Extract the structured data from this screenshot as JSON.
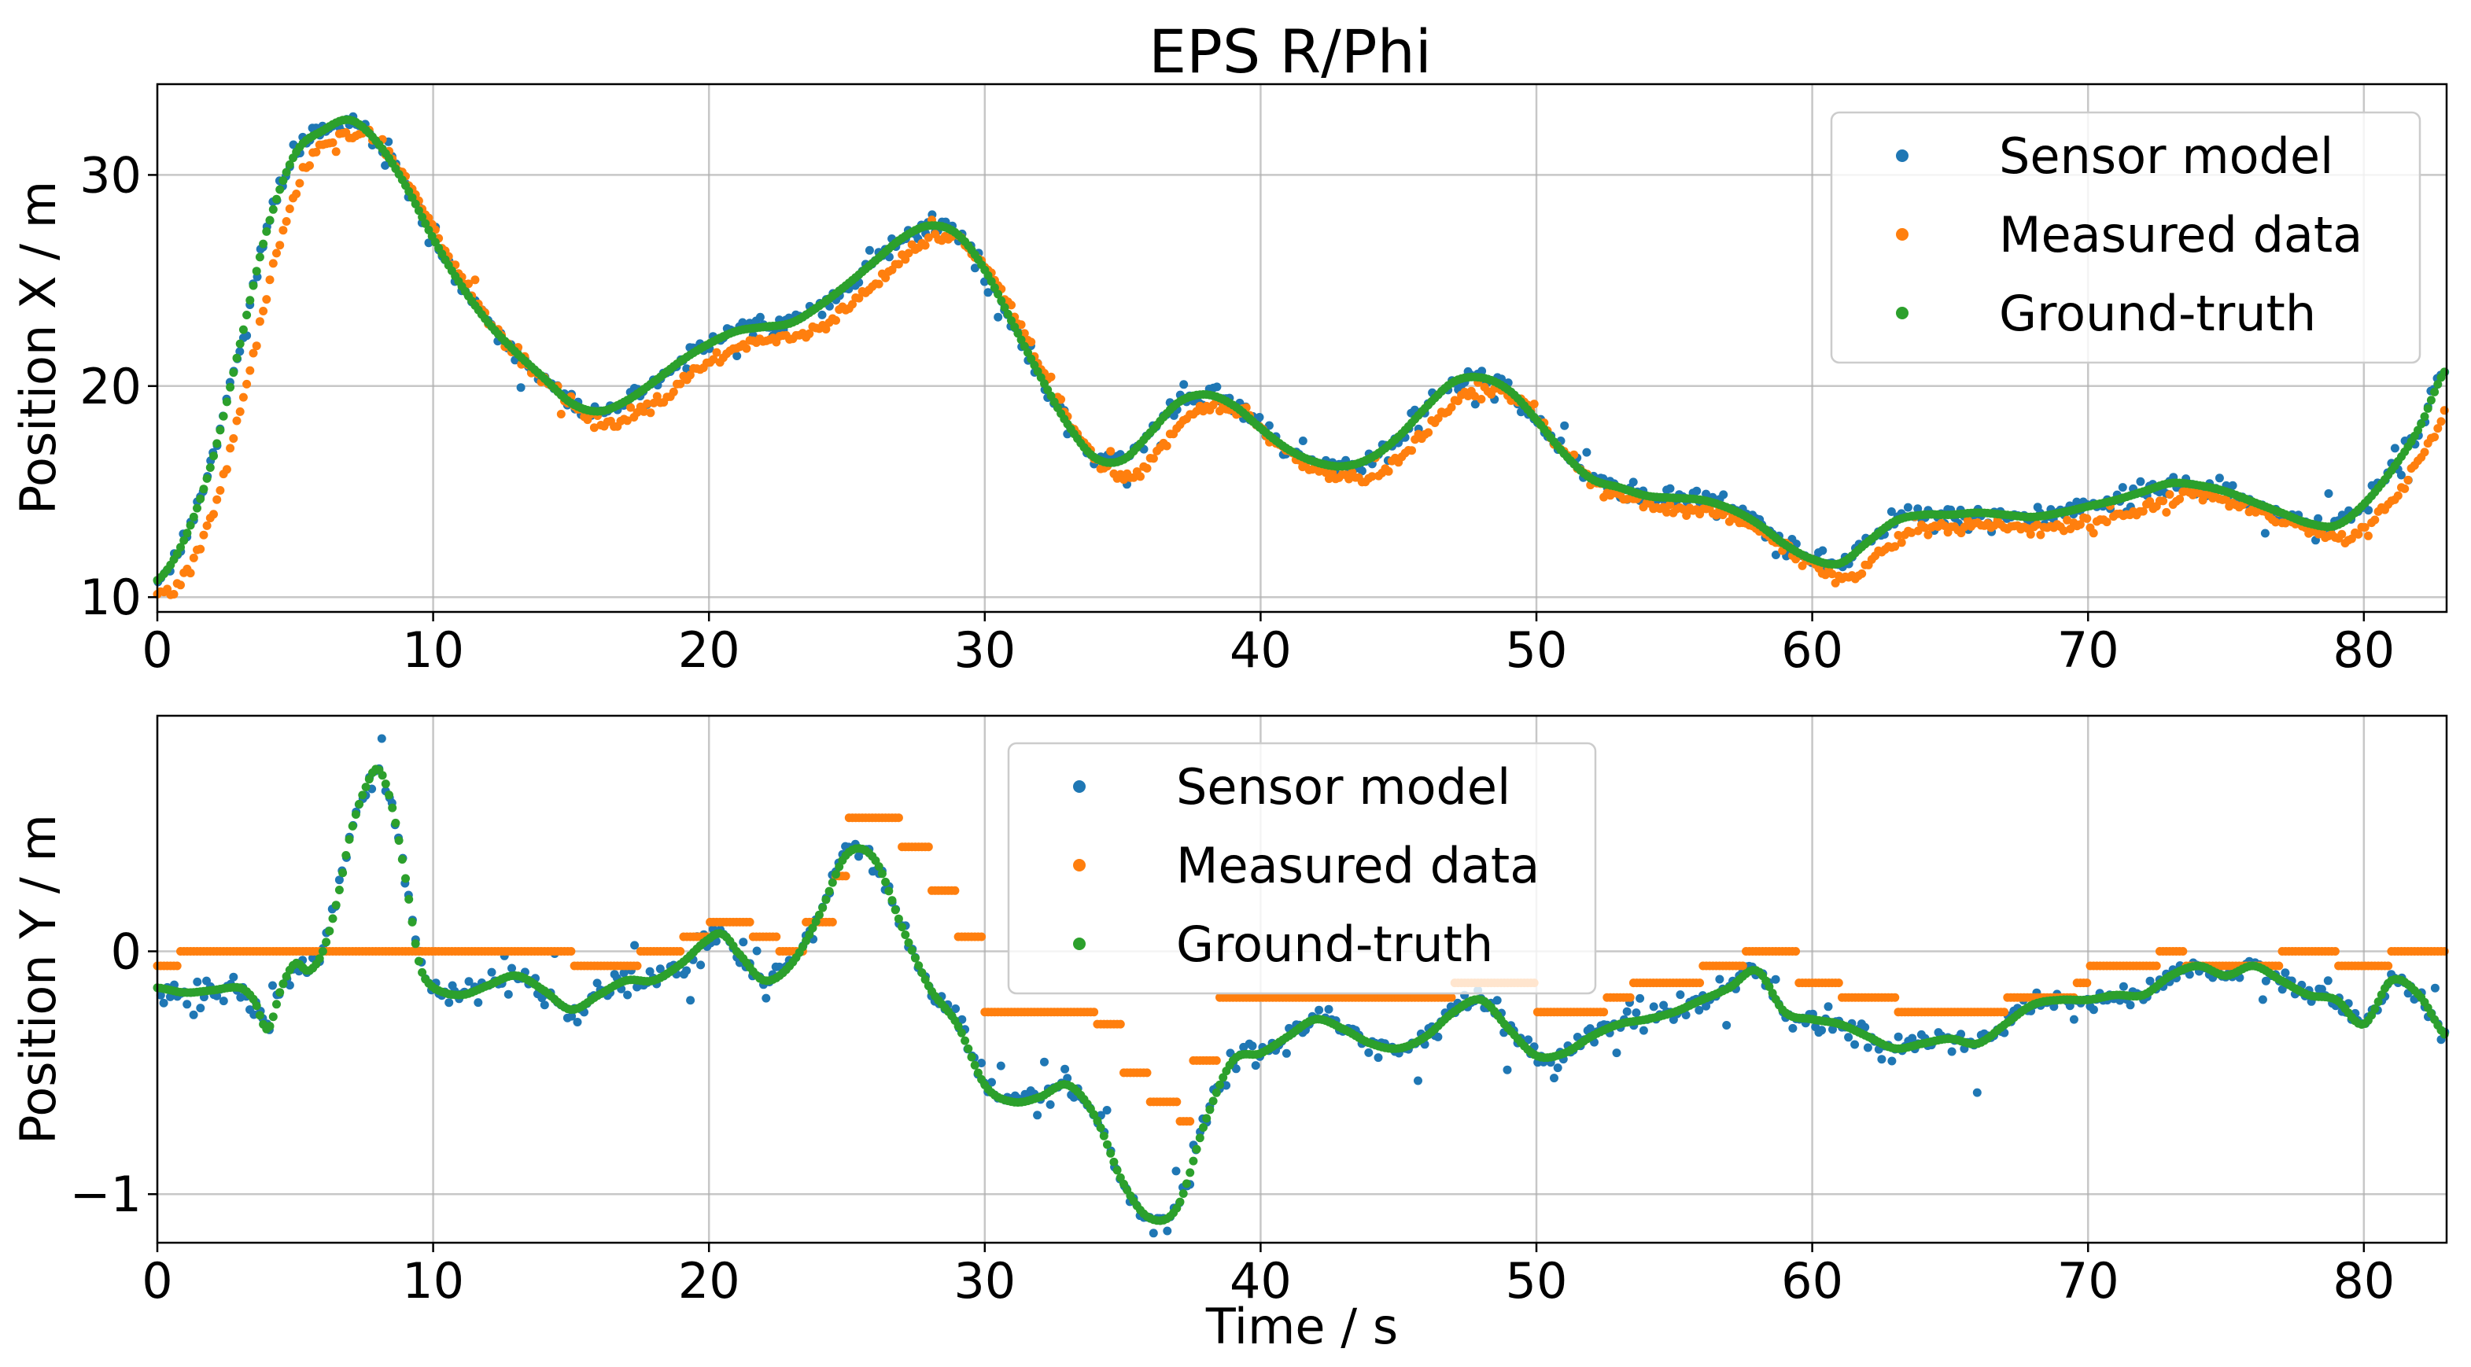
{
  "figure": {
    "title": "EPS R/Phi"
  },
  "chart_data": [
    {
      "type": "scatter",
      "title": "EPS R/Phi",
      "xlabel": "",
      "ylabel": "Position X / m",
      "xlim": [
        0,
        83
      ],
      "ylim": [
        9.3,
        34.3
      ],
      "xticks": [
        0,
        10,
        20,
        30,
        40,
        50,
        60,
        70,
        80
      ],
      "xtick_labels": [
        "0",
        "10",
        "20",
        "30",
        "40",
        "50",
        "60",
        "70",
        "80"
      ],
      "yticks": [
        10,
        20,
        30
      ],
      "ytick_labels": [
        "10",
        "20",
        "30"
      ],
      "grid": true,
      "legend_position": "top-right",
      "sample_step": 0.12,
      "truth_anchors": {
        "x": [
          0,
          1,
          2,
          3,
          4,
          5,
          6,
          7,
          8,
          9,
          10,
          11,
          12,
          13,
          14,
          15,
          16,
          17,
          18,
          19,
          20,
          21,
          22,
          23,
          24,
          25,
          26,
          27,
          28,
          29,
          30,
          31,
          32,
          33,
          34,
          35,
          36,
          37,
          38,
          39,
          40,
          41,
          42,
          43,
          44,
          45,
          46,
          47,
          48,
          49,
          50,
          51,
          52,
          53,
          54,
          55,
          56,
          57,
          58,
          59,
          60,
          61,
          62,
          63,
          64,
          65,
          66,
          67,
          68,
          69,
          70,
          71,
          72,
          73,
          74,
          75,
          76,
          77,
          78,
          79,
          80,
          81,
          82,
          83
        ],
        "y": [
          10.8,
          12.8,
          16.5,
          22.0,
          27.5,
          31.0,
          32.1,
          32.6,
          31.5,
          29.5,
          27.0,
          24.8,
          23.0,
          21.6,
          20.4,
          19.2,
          18.8,
          19.3,
          20.2,
          21.2,
          22.0,
          22.6,
          22.8,
          23.0,
          23.8,
          24.8,
          25.9,
          27.0,
          27.6,
          27.2,
          25.5,
          23.0,
          20.5,
          18.2,
          16.6,
          16.5,
          17.8,
          19.2,
          19.6,
          19.1,
          18.0,
          17.0,
          16.4,
          16.2,
          16.6,
          17.6,
          19.0,
          20.2,
          20.4,
          19.8,
          18.4,
          16.8,
          15.6,
          15.2,
          14.8,
          14.7,
          14.6,
          14.2,
          13.5,
          12.5,
          11.8,
          11.6,
          12.6,
          13.6,
          13.9,
          13.9,
          14.0,
          13.9,
          13.8,
          14.0,
          14.3,
          14.6,
          15.0,
          15.4,
          15.3,
          15.0,
          14.5,
          14.0,
          13.5,
          13.4,
          14.4,
          16.0,
          18.0,
          20.8
        ]
      },
      "measured_offset": -0.6,
      "measured_lag": 0.45,
      "series": [
        {
          "name": "Sensor model",
          "color": "#1f77b4",
          "noise": 0.25,
          "outlier_rate": 0.04,
          "outlier_amp": 1.4
        },
        {
          "name": "Measured data",
          "color": "#ff7f0e",
          "noise": 0.15,
          "outlier_rate": 0.03,
          "outlier_amp": 1.0
        },
        {
          "name": "Ground-truth",
          "color": "#2ca02c",
          "noise": 0.0,
          "outlier_rate": 0.0,
          "outlier_amp": 0.0
        }
      ]
    },
    {
      "type": "scatter",
      "title": "",
      "xlabel": "Time / s",
      "ylabel": "Position Y / m",
      "xlim": [
        0,
        83
      ],
      "ylim": [
        -1.2,
        0.97
      ],
      "xticks": [
        0,
        10,
        20,
        30,
        40,
        50,
        60,
        70,
        80
      ],
      "xtick_labels": [
        "0",
        "10",
        "20",
        "30",
        "40",
        "50",
        "60",
        "70",
        "80"
      ],
      "yticks": [
        -1,
        0
      ],
      "ytick_labels": [
        "−1",
        "0"
      ],
      "grid": true,
      "legend_position": "top-center",
      "sample_step": 0.12,
      "truth_anchors": {
        "x": [
          0,
          1,
          2,
          3,
          3.5,
          4,
          4.5,
          5,
          5.5,
          6,
          6.5,
          7,
          7.5,
          8,
          8.5,
          9,
          9.5,
          10,
          11,
          12,
          13,
          14,
          15,
          16,
          17,
          18,
          19,
          20,
          20.5,
          21,
          22,
          23,
          24,
          25,
          26,
          27,
          28,
          29,
          30,
          31,
          32,
          33,
          34,
          35,
          36,
          37,
          38,
          39,
          40,
          41,
          42,
          43,
          44,
          45,
          46,
          47,
          48,
          49,
          50,
          51,
          52,
          53,
          54,
          55,
          56,
          57,
          58,
          59,
          60,
          61,
          62,
          63,
          64,
          65,
          66,
          67,
          68,
          69,
          70,
          71,
          72,
          73,
          74,
          75,
          76,
          77,
          78,
          79,
          80,
          81,
          82,
          83
        ],
        "y": [
          -0.15,
          -0.17,
          -0.16,
          -0.15,
          -0.2,
          -0.32,
          -0.15,
          -0.05,
          -0.08,
          0.0,
          0.2,
          0.48,
          0.66,
          0.75,
          0.6,
          0.3,
          -0.05,
          -0.15,
          -0.18,
          -0.14,
          -0.1,
          -0.16,
          -0.24,
          -0.18,
          -0.12,
          -0.12,
          -0.05,
          0.05,
          0.07,
          0.0,
          -0.12,
          -0.05,
          0.15,
          0.4,
          0.38,
          0.1,
          -0.15,
          -0.3,
          -0.55,
          -0.62,
          -0.6,
          -0.55,
          -0.68,
          -0.95,
          -1.1,
          -1.05,
          -0.7,
          -0.45,
          -0.42,
          -0.35,
          -0.28,
          -0.32,
          -0.38,
          -0.4,
          -0.35,
          -0.25,
          -0.2,
          -0.32,
          -0.43,
          -0.42,
          -0.35,
          -0.3,
          -0.28,
          -0.25,
          -0.2,
          -0.15,
          -0.08,
          -0.25,
          -0.28,
          -0.3,
          -0.35,
          -0.4,
          -0.38,
          -0.36,
          -0.38,
          -0.3,
          -0.22,
          -0.2,
          -0.2,
          -0.18,
          -0.18,
          -0.1,
          -0.06,
          -0.1,
          -0.06,
          -0.12,
          -0.18,
          -0.2,
          -0.3,
          -0.12,
          -0.18,
          -0.35
        ]
      },
      "measured_plateaus": {
        "x_starts": [
          0,
          0.8,
          10,
          15,
          17.5,
          19,
          20,
          21.5,
          22.5,
          23.5,
          24.5,
          25,
          26,
          27,
          28,
          29,
          30,
          33,
          34,
          35,
          36,
          37,
          37.5,
          38.5,
          40,
          45,
          47,
          50,
          52.5,
          53.5,
          56,
          57.5,
          58.5,
          59.5,
          61,
          63,
          66,
          67,
          68,
          69.5,
          70,
          71.5,
          72.5,
          73.5,
          75,
          77,
          77.5,
          79,
          81,
          83
        ],
        "y": [
          -0.06,
          0.0,
          0.0,
          -0.06,
          0.0,
          0.06,
          0.12,
          0.06,
          0.0,
          0.12,
          0.31,
          0.55,
          0.55,
          0.43,
          0.25,
          0.06,
          -0.25,
          -0.25,
          -0.3,
          -0.5,
          -0.62,
          -0.7,
          -0.45,
          -0.19,
          -0.19,
          -0.19,
          -0.13,
          -0.25,
          -0.19,
          -0.13,
          -0.06,
          0.0,
          0.0,
          -0.13,
          -0.19,
          -0.25,
          -0.25,
          -0.19,
          -0.19,
          -0.13,
          -0.06,
          -0.06,
          0.0,
          -0.06,
          -0.06,
          0.0,
          0.0,
          -0.06,
          0.0,
          0.0
        ]
      },
      "series": [
        {
          "name": "Sensor model",
          "color": "#1f77b4",
          "noise": 0.025,
          "outlier_rate": 0.05,
          "outlier_amp": 0.18
        },
        {
          "name": "Measured data",
          "color": "#ff7f0e",
          "noise": 0.0,
          "outlier_rate": 0.0,
          "outlier_amp": 0.0
        },
        {
          "name": "Ground-truth",
          "color": "#2ca02c",
          "noise": 0.0,
          "outlier_rate": 0.0,
          "outlier_amp": 0.0
        }
      ]
    }
  ]
}
